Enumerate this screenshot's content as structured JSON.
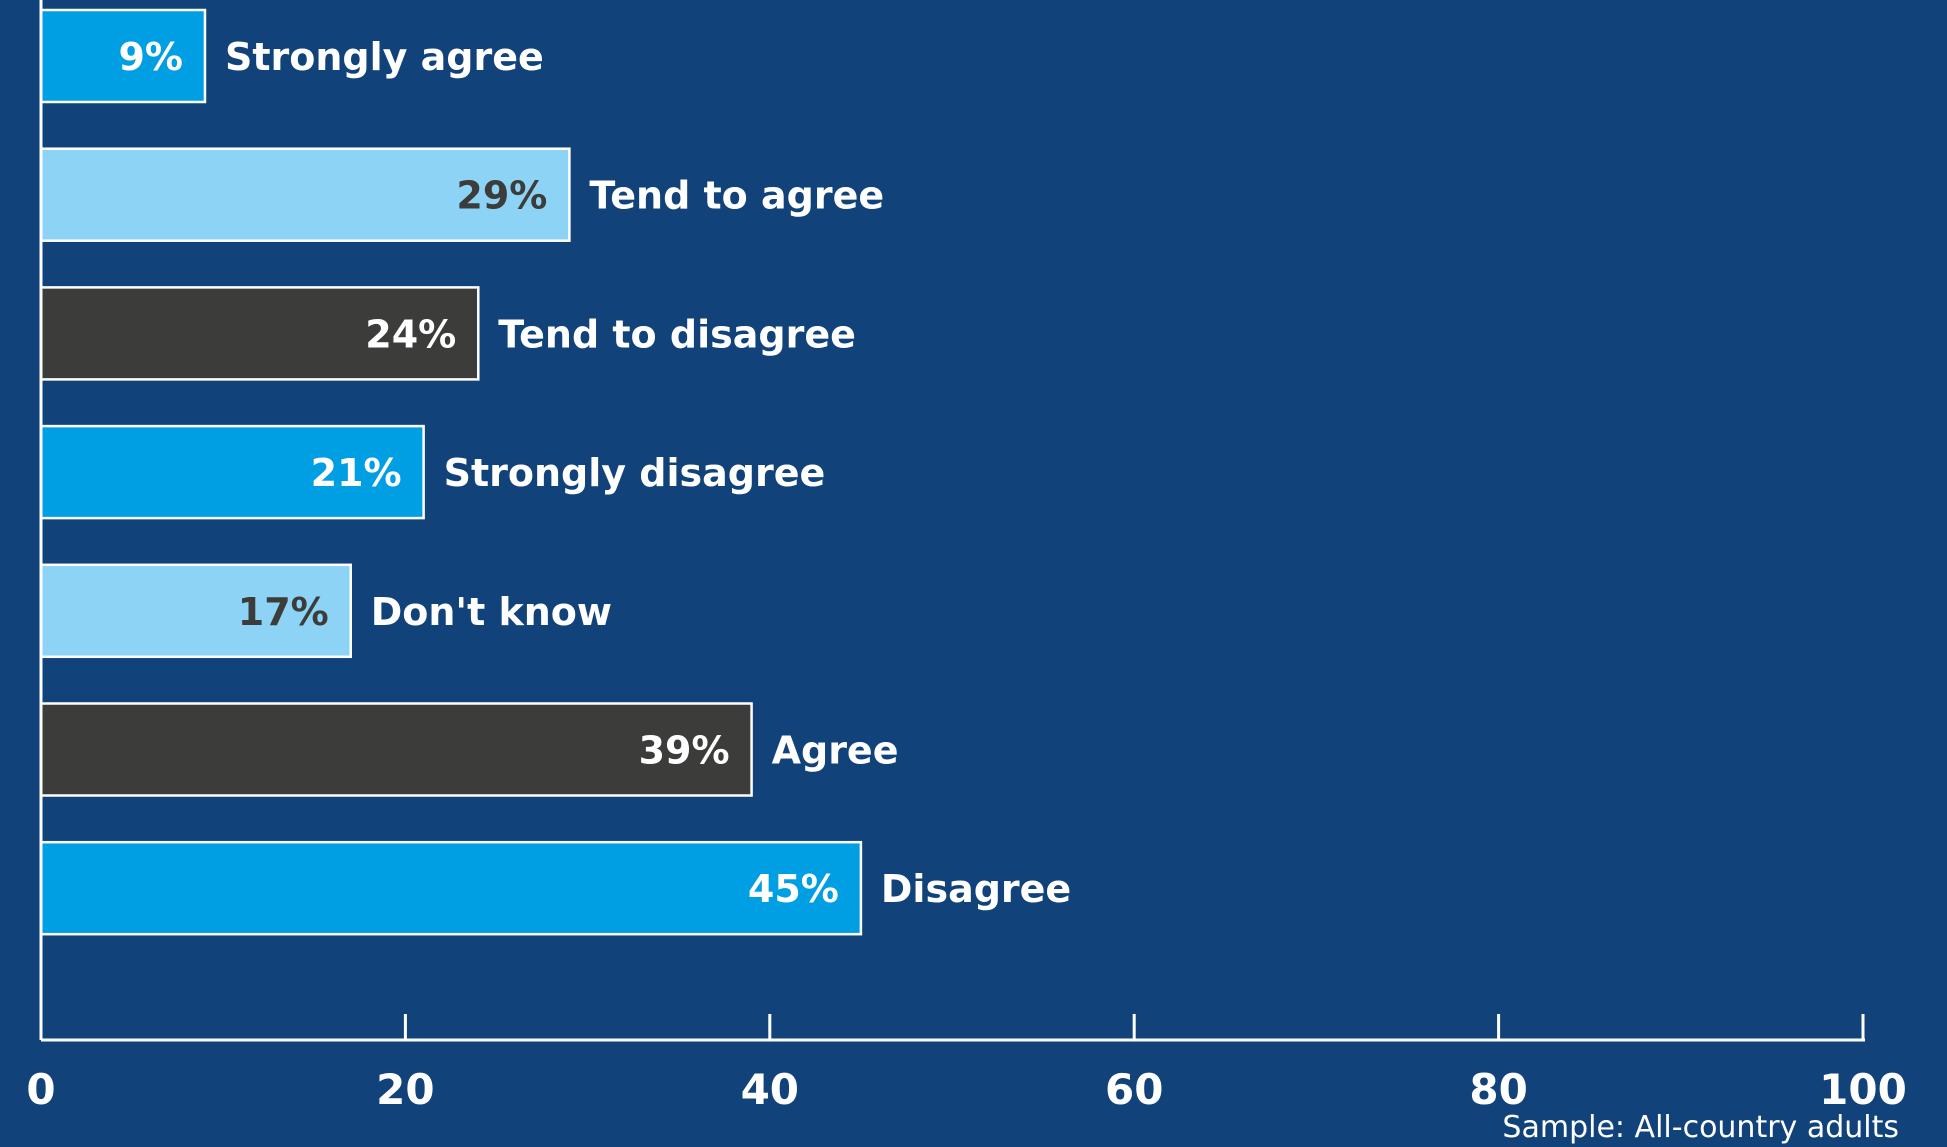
{
  "chart_data": {
    "type": "bar",
    "orientation": "horizontal",
    "categories": [
      "Strongly agree",
      "Tend to agree",
      "Tend to disagree",
      "Strongly disagree",
      "Don't know",
      "Agree",
      "Disagree"
    ],
    "values": [
      9,
      29,
      24,
      21,
      17,
      39,
      45
    ],
    "value_labels": [
      "9%",
      "29%",
      "24%",
      "21%",
      "17%",
      "39%",
      "45%"
    ],
    "bar_colors": [
      "#009fe3",
      "#8dd3f5",
      "#3c3c3b",
      "#009fe3",
      "#8dd3f5",
      "#3c3c3b",
      "#009fe3"
    ],
    "value_label_colors": [
      "#ffffff",
      "#3c3c3b",
      "#ffffff",
      "#ffffff",
      "#3c3c3b",
      "#ffffff",
      "#ffffff"
    ],
    "xlim": [
      0,
      100
    ],
    "xticks": [
      0,
      20,
      40,
      60,
      80,
      100
    ],
    "xtick_labels": [
      "0",
      "20",
      "40",
      "60",
      "80",
      "100"
    ],
    "grid": false,
    "background_color": "#11437a",
    "axis_color": "#ffffff",
    "note": "Sample: All-country adults"
  }
}
